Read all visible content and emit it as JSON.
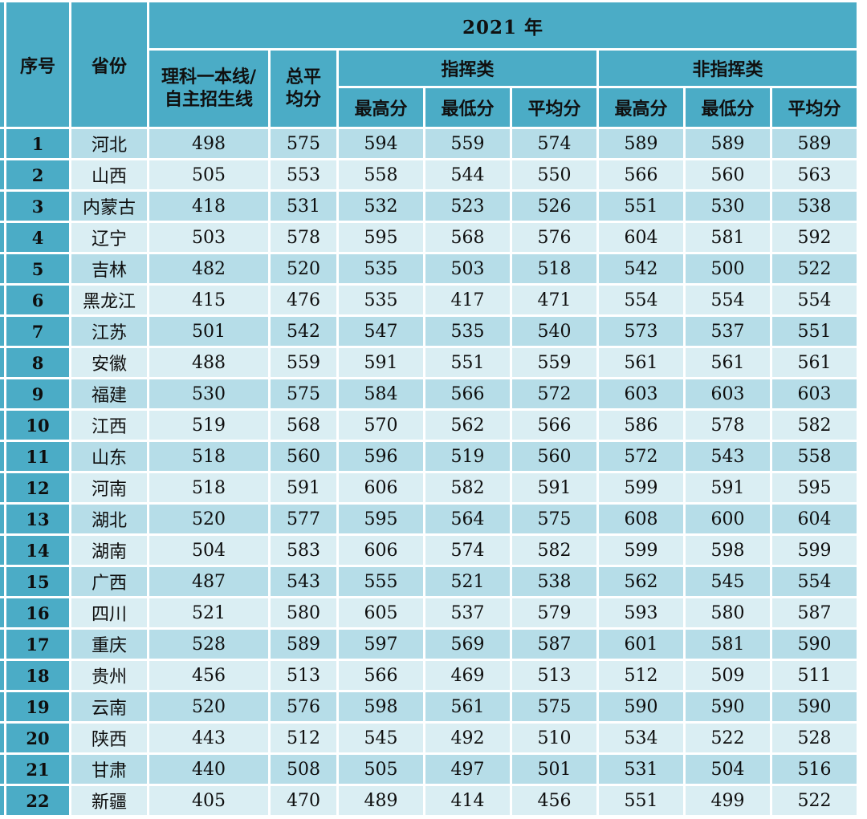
{
  "table": {
    "year": "2021 年",
    "headers": {
      "index": "序号",
      "province": "省份",
      "line1": "理科一本线/",
      "line2": "自主招生线",
      "total_avg1": "总平",
      "total_avg2": "均分",
      "command": "指挥类",
      "non_command": "非指挥类",
      "max": "最高分",
      "min": "最低分",
      "avg": "平均分"
    },
    "rows": [
      {
        "no": "1",
        "province": "河北",
        "line": "498",
        "total_avg": "575",
        "cmd_max": "594",
        "cmd_min": "559",
        "cmd_avg": "574",
        "non_max": "589",
        "non_min": "589",
        "non_avg": "589"
      },
      {
        "no": "2",
        "province": "山西",
        "line": "505",
        "total_avg": "553",
        "cmd_max": "558",
        "cmd_min": "544",
        "cmd_avg": "550",
        "non_max": "566",
        "non_min": "560",
        "non_avg": "563"
      },
      {
        "no": "3",
        "province": "内蒙古",
        "line": "418",
        "total_avg": "531",
        "cmd_max": "532",
        "cmd_min": "523",
        "cmd_avg": "526",
        "non_max": "551",
        "non_min": "530",
        "non_avg": "538"
      },
      {
        "no": "4",
        "province": "辽宁",
        "line": "503",
        "total_avg": "578",
        "cmd_max": "595",
        "cmd_min": "568",
        "cmd_avg": "576",
        "non_max": "604",
        "non_min": "581",
        "non_avg": "592"
      },
      {
        "no": "5",
        "province": "吉林",
        "line": "482",
        "total_avg": "520",
        "cmd_max": "535",
        "cmd_min": "503",
        "cmd_avg": "518",
        "non_max": "542",
        "non_min": "500",
        "non_avg": "522"
      },
      {
        "no": "6",
        "province": "黑龙江",
        "line": "415",
        "total_avg": "476",
        "cmd_max": "535",
        "cmd_min": "417",
        "cmd_avg": "471",
        "non_max": "554",
        "non_min": "554",
        "non_avg": "554"
      },
      {
        "no": "7",
        "province": "江苏",
        "line": "501",
        "total_avg": "542",
        "cmd_max": "547",
        "cmd_min": "535",
        "cmd_avg": "540",
        "non_max": "573",
        "non_min": "537",
        "non_avg": "551"
      },
      {
        "no": "8",
        "province": "安徽",
        "line": "488",
        "total_avg": "559",
        "cmd_max": "591",
        "cmd_min": "551",
        "cmd_avg": "559",
        "non_max": "561",
        "non_min": "561",
        "non_avg": "561"
      },
      {
        "no": "9",
        "province": "福建",
        "line": "530",
        "total_avg": "575",
        "cmd_max": "584",
        "cmd_min": "566",
        "cmd_avg": "572",
        "non_max": "603",
        "non_min": "603",
        "non_avg": "603"
      },
      {
        "no": "10",
        "province": "江西",
        "line": "519",
        "total_avg": "568",
        "cmd_max": "570",
        "cmd_min": "562",
        "cmd_avg": "566",
        "non_max": "586",
        "non_min": "578",
        "non_avg": "582"
      },
      {
        "no": "11",
        "province": "山东",
        "line": "518",
        "total_avg": "560",
        "cmd_max": "596",
        "cmd_min": "519",
        "cmd_avg": "560",
        "non_max": "572",
        "non_min": "543",
        "non_avg": "558"
      },
      {
        "no": "12",
        "province": "河南",
        "line": "518",
        "total_avg": "591",
        "cmd_max": "606",
        "cmd_min": "582",
        "cmd_avg": "591",
        "non_max": "599",
        "non_min": "591",
        "non_avg": "595"
      },
      {
        "no": "13",
        "province": "湖北",
        "line": "520",
        "total_avg": "577",
        "cmd_max": "595",
        "cmd_min": "564",
        "cmd_avg": "575",
        "non_max": "608",
        "non_min": "600",
        "non_avg": "604"
      },
      {
        "no": "14",
        "province": "湖南",
        "line": "504",
        "total_avg": "583",
        "cmd_max": "606",
        "cmd_min": "574",
        "cmd_avg": "582",
        "non_max": "599",
        "non_min": "598",
        "non_avg": "599"
      },
      {
        "no": "15",
        "province": "广西",
        "line": "487",
        "total_avg": "543",
        "cmd_max": "555",
        "cmd_min": "521",
        "cmd_avg": "538",
        "non_max": "562",
        "non_min": "545",
        "non_avg": "554"
      },
      {
        "no": "16",
        "province": "四川",
        "line": "521",
        "total_avg": "580",
        "cmd_max": "605",
        "cmd_min": "537",
        "cmd_avg": "579",
        "non_max": "593",
        "non_min": "580",
        "non_avg": "587"
      },
      {
        "no": "17",
        "province": "重庆",
        "line": "528",
        "total_avg": "589",
        "cmd_max": "597",
        "cmd_min": "569",
        "cmd_avg": "587",
        "non_max": "601",
        "non_min": "581",
        "non_avg": "590"
      },
      {
        "no": "18",
        "province": "贵州",
        "line": "456",
        "total_avg": "513",
        "cmd_max": "566",
        "cmd_min": "469",
        "cmd_avg": "513",
        "non_max": "512",
        "non_min": "509",
        "non_avg": "511"
      },
      {
        "no": "19",
        "province": "云南",
        "line": "520",
        "total_avg": "576",
        "cmd_max": "598",
        "cmd_min": "561",
        "cmd_avg": "575",
        "non_max": "590",
        "non_min": "590",
        "non_avg": "590"
      },
      {
        "no": "20",
        "province": "陕西",
        "line": "443",
        "total_avg": "512",
        "cmd_max": "545",
        "cmd_min": "492",
        "cmd_avg": "510",
        "non_max": "534",
        "non_min": "522",
        "non_avg": "528"
      },
      {
        "no": "21",
        "province": "甘肃",
        "line": "440",
        "total_avg": "508",
        "cmd_max": "505",
        "cmd_min": "497",
        "cmd_avg": "501",
        "non_max": "531",
        "non_min": "504",
        "non_avg": "516"
      },
      {
        "no": "22",
        "province": "新疆",
        "line": "405",
        "total_avg": "470",
        "cmd_max": "489",
        "cmd_min": "414",
        "cmd_avg": "456",
        "non_max": "551",
        "non_min": "499",
        "non_avg": "522"
      }
    ]
  },
  "colors": {
    "header_teal": "#4bacc6",
    "row_medium": "#b6dde8",
    "row_light": "#daeef3",
    "grid_gap": "#ffffff",
    "text": "#0e0e0e"
  }
}
